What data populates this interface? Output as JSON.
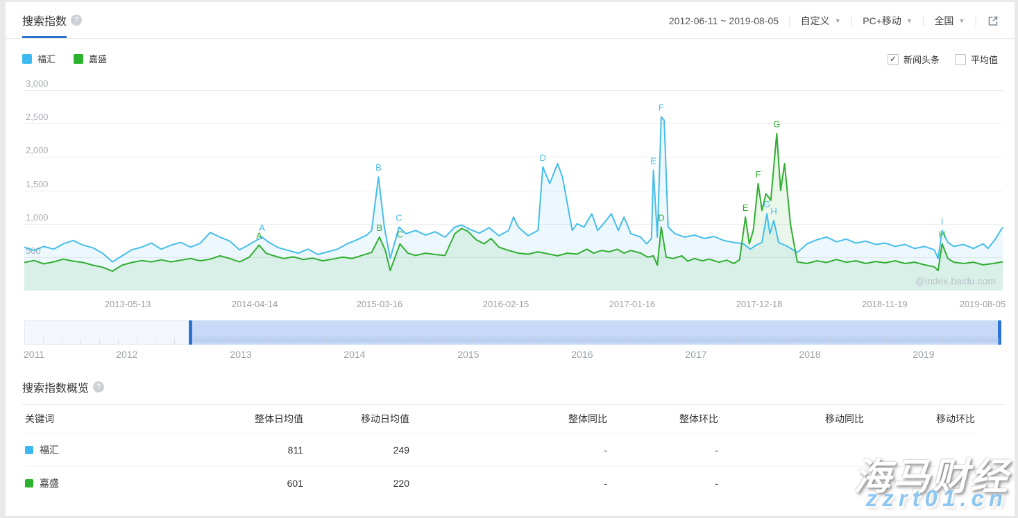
{
  "header": {
    "title": "搜索指数",
    "date_range": "2012-06-11 ~ 2019-08-05",
    "dropdowns": [
      {
        "label": "自定义"
      },
      {
        "label": "PC+移动"
      },
      {
        "label": "全国"
      }
    ]
  },
  "legend": {
    "items": [
      {
        "label": "福汇",
        "color": "#3cbaf0"
      },
      {
        "label": "嘉盛",
        "color": "#2db22d"
      }
    ]
  },
  "controls": {
    "checkboxes": [
      {
        "label": "新闻头条",
        "checked": true
      },
      {
        "label": "平均值",
        "checked": false
      }
    ]
  },
  "chart_data": {
    "type": "area",
    "title": "搜索指数 (Baidu index, daily search volume)",
    "x_start": "2012-06-11",
    "x_end": "2019-08-05",
    "xlabel": "",
    "ylabel": "",
    "ylim": [
      0,
      3000
    ],
    "grid": true,
    "legend_position": "top-left",
    "watermark": "@index.baidu.com",
    "yticks": [
      {
        "v": 500,
        "label": "500"
      },
      {
        "v": 1000,
        "label": "1,000"
      },
      {
        "v": 1500,
        "label": "1,500"
      },
      {
        "v": 2000,
        "label": "2,000"
      },
      {
        "v": 2500,
        "label": "2,500"
      },
      {
        "v": 3000,
        "label": "3,000"
      }
    ],
    "xticks": [
      {
        "t": 0.1057,
        "label": "2013-05-13"
      },
      {
        "t": 0.2355,
        "label": "2014-04-14"
      },
      {
        "t": 0.3631,
        "label": "2015-03-16"
      },
      {
        "t": 0.4922,
        "label": "2016-02-15"
      },
      {
        "t": 0.6213,
        "label": "2017-01-16"
      },
      {
        "t": 0.7511,
        "label": "2017-12-18"
      },
      {
        "t": 0.8794,
        "label": "2018-11-19"
      },
      {
        "t": 0.9794,
        "label": "2019-08-05"
      }
    ],
    "series": [
      {
        "name": "福汇",
        "color": "#45bdea",
        "fill": "rgba(69,189,234,0.10)",
        "points": [
          [
            0,
            650
          ],
          [
            0.01,
            600
          ],
          [
            0.02,
            660
          ],
          [
            0.03,
            620
          ],
          [
            0.04,
            700
          ],
          [
            0.05,
            750
          ],
          [
            0.06,
            680
          ],
          [
            0.07,
            640
          ],
          [
            0.08,
            560
          ],
          [
            0.09,
            430
          ],
          [
            0.1,
            520
          ],
          [
            0.11,
            610
          ],
          [
            0.12,
            650
          ],
          [
            0.13,
            710
          ],
          [
            0.14,
            620
          ],
          [
            0.15,
            680
          ],
          [
            0.16,
            720
          ],
          [
            0.17,
            650
          ],
          [
            0.18,
            710
          ],
          [
            0.19,
            870
          ],
          [
            0.2,
            800
          ],
          [
            0.21,
            740
          ],
          [
            0.22,
            610
          ],
          [
            0.23,
            690
          ],
          [
            0.243,
            800
          ],
          [
            0.25,
            720
          ],
          [
            0.26,
            640
          ],
          [
            0.27,
            600
          ],
          [
            0.28,
            560
          ],
          [
            0.29,
            620
          ],
          [
            0.3,
            540
          ],
          [
            0.31,
            580
          ],
          [
            0.32,
            620
          ],
          [
            0.33,
            700
          ],
          [
            0.34,
            760
          ],
          [
            0.35,
            830
          ],
          [
            0.355,
            900
          ],
          [
            0.362,
            1700
          ],
          [
            0.368,
            950
          ],
          [
            0.374,
            480
          ],
          [
            0.383,
            950
          ],
          [
            0.39,
            850
          ],
          [
            0.4,
            900
          ],
          [
            0.41,
            830
          ],
          [
            0.42,
            880
          ],
          [
            0.43,
            800
          ],
          [
            0.44,
            950
          ],
          [
            0.447,
            980
          ],
          [
            0.455,
            920
          ],
          [
            0.465,
            860
          ],
          [
            0.475,
            940
          ],
          [
            0.485,
            820
          ],
          [
            0.495,
            900
          ],
          [
            0.5,
            1100
          ],
          [
            0.505,
            950
          ],
          [
            0.515,
            820
          ],
          [
            0.525,
            900
          ],
          [
            0.53,
            1850
          ],
          [
            0.537,
            1600
          ],
          [
            0.545,
            1900
          ],
          [
            0.55,
            1700
          ],
          [
            0.555,
            1300
          ],
          [
            0.56,
            900
          ],
          [
            0.565,
            1000
          ],
          [
            0.572,
            950
          ],
          [
            0.58,
            1150
          ],
          [
            0.586,
            900
          ],
          [
            0.592,
            1000
          ],
          [
            0.6,
            1150
          ],
          [
            0.607,
            900
          ],
          [
            0.613,
            1100
          ],
          [
            0.62,
            850
          ],
          [
            0.63,
            800
          ],
          [
            0.636,
            700
          ],
          [
            0.641,
            780
          ],
          [
            0.643,
            1800
          ],
          [
            0.647,
            800
          ],
          [
            0.651,
            2600
          ],
          [
            0.654,
            2550
          ],
          [
            0.658,
            950
          ],
          [
            0.665,
            850
          ],
          [
            0.675,
            800
          ],
          [
            0.685,
            830
          ],
          [
            0.695,
            780
          ],
          [
            0.705,
            810
          ],
          [
            0.715,
            750
          ],
          [
            0.725,
            720
          ],
          [
            0.735,
            700
          ],
          [
            0.742,
            620
          ],
          [
            0.748,
            680
          ],
          [
            0.754,
            720
          ],
          [
            0.759,
            1150
          ],
          [
            0.762,
            850
          ],
          [
            0.766,
            1050
          ],
          [
            0.771,
            720
          ],
          [
            0.78,
            660
          ],
          [
            0.79,
            570
          ],
          [
            0.8,
            700
          ],
          [
            0.81,
            760
          ],
          [
            0.82,
            800
          ],
          [
            0.83,
            730
          ],
          [
            0.84,
            770
          ],
          [
            0.85,
            710
          ],
          [
            0.86,
            740
          ],
          [
            0.87,
            690
          ],
          [
            0.88,
            710
          ],
          [
            0.89,
            660
          ],
          [
            0.9,
            690
          ],
          [
            0.91,
            630
          ],
          [
            0.92,
            660
          ],
          [
            0.93,
            610
          ],
          [
            0.934,
            480
          ],
          [
            0.938,
            900
          ],
          [
            0.944,
            720
          ],
          [
            0.95,
            660
          ],
          [
            0.96,
            690
          ],
          [
            0.97,
            630
          ],
          [
            0.98,
            700
          ],
          [
            0.985,
            630
          ],
          [
            0.992,
            760
          ],
          [
            1,
            950
          ]
        ],
        "annotations": [
          {
            "label": "A",
            "t": 0.243,
            "v": 800
          },
          {
            "label": "B",
            "t": 0.362,
            "v": 1700
          },
          {
            "label": "C",
            "t": 0.383,
            "v": 950
          },
          {
            "label": "D",
            "t": 0.53,
            "v": 1850
          },
          {
            "label": "E",
            "t": 0.643,
            "v": 1800
          },
          {
            "label": "F",
            "t": 0.651,
            "v": 2600
          },
          {
            "label": "G",
            "t": 0.759,
            "v": 1150
          },
          {
            "label": "H",
            "t": 0.766,
            "v": 1050
          },
          {
            "label": "I",
            "t": 0.938,
            "v": 900
          }
        ]
      },
      {
        "name": "嘉盛",
        "color": "#2fae2f",
        "fill": "rgba(47,174,47,0.10)",
        "points": [
          [
            0,
            420
          ],
          [
            0.01,
            450
          ],
          [
            0.02,
            400
          ],
          [
            0.03,
            430
          ],
          [
            0.04,
            470
          ],
          [
            0.05,
            440
          ],
          [
            0.06,
            420
          ],
          [
            0.07,
            380
          ],
          [
            0.08,
            350
          ],
          [
            0.09,
            290
          ],
          [
            0.1,
            380
          ],
          [
            0.11,
            420
          ],
          [
            0.12,
            450
          ],
          [
            0.13,
            430
          ],
          [
            0.14,
            460
          ],
          [
            0.15,
            430
          ],
          [
            0.16,
            455
          ],
          [
            0.17,
            480
          ],
          [
            0.18,
            445
          ],
          [
            0.19,
            470
          ],
          [
            0.2,
            520
          ],
          [
            0.21,
            480
          ],
          [
            0.22,
            430
          ],
          [
            0.23,
            500
          ],
          [
            0.24,
            680
          ],
          [
            0.247,
            560
          ],
          [
            0.255,
            520
          ],
          [
            0.265,
            480
          ],
          [
            0.275,
            505
          ],
          [
            0.285,
            465
          ],
          [
            0.295,
            485
          ],
          [
            0.305,
            445
          ],
          [
            0.315,
            470
          ],
          [
            0.325,
            500
          ],
          [
            0.335,
            480
          ],
          [
            0.345,
            525
          ],
          [
            0.355,
            570
          ],
          [
            0.363,
            800
          ],
          [
            0.369,
            600
          ],
          [
            0.374,
            300
          ],
          [
            0.384,
            700
          ],
          [
            0.392,
            560
          ],
          [
            0.4,
            525
          ],
          [
            0.41,
            560
          ],
          [
            0.42,
            540
          ],
          [
            0.43,
            525
          ],
          [
            0.44,
            850
          ],
          [
            0.447,
            930
          ],
          [
            0.453,
            890
          ],
          [
            0.462,
            760
          ],
          [
            0.47,
            700
          ],
          [
            0.477,
            780
          ],
          [
            0.485,
            650
          ],
          [
            0.495,
            600
          ],
          [
            0.505,
            560
          ],
          [
            0.515,
            545
          ],
          [
            0.525,
            580
          ],
          [
            0.535,
            550
          ],
          [
            0.545,
            520
          ],
          [
            0.555,
            560
          ],
          [
            0.565,
            545
          ],
          [
            0.575,
            620
          ],
          [
            0.582,
            560
          ],
          [
            0.59,
            600
          ],
          [
            0.598,
            580
          ],
          [
            0.606,
            620
          ],
          [
            0.613,
            560
          ],
          [
            0.62,
            600
          ],
          [
            0.63,
            560
          ],
          [
            0.637,
            500
          ],
          [
            0.643,
            520
          ],
          [
            0.647,
            380
          ],
          [
            0.651,
            950
          ],
          [
            0.656,
            500
          ],
          [
            0.663,
            480
          ],
          [
            0.672,
            520
          ],
          [
            0.678,
            440
          ],
          [
            0.685,
            480
          ],
          [
            0.693,
            445
          ],
          [
            0.7,
            470
          ],
          [
            0.71,
            425
          ],
          [
            0.718,
            455
          ],
          [
            0.725,
            405
          ],
          [
            0.731,
            460
          ],
          [
            0.737,
            1100
          ],
          [
            0.741,
            700
          ],
          [
            0.745,
            900
          ],
          [
            0.75,
            1600
          ],
          [
            0.754,
            1200
          ],
          [
            0.758,
            1450
          ],
          [
            0.763,
            1350
          ],
          [
            0.769,
            2350
          ],
          [
            0.773,
            1500
          ],
          [
            0.777,
            1900
          ],
          [
            0.783,
            1000
          ],
          [
            0.79,
            430
          ],
          [
            0.8,
            405
          ],
          [
            0.81,
            445
          ],
          [
            0.82,
            420
          ],
          [
            0.83,
            465
          ],
          [
            0.84,
            425
          ],
          [
            0.85,
            445
          ],
          [
            0.86,
            405
          ],
          [
            0.87,
            435
          ],
          [
            0.88,
            415
          ],
          [
            0.89,
            445
          ],
          [
            0.9,
            405
          ],
          [
            0.91,
            425
          ],
          [
            0.92,
            385
          ],
          [
            0.93,
            355
          ],
          [
            0.934,
            300
          ],
          [
            0.938,
            700
          ],
          [
            0.944,
            480
          ],
          [
            0.95,
            425
          ],
          [
            0.96,
            405
          ],
          [
            0.97,
            425
          ],
          [
            0.98,
            385
          ],
          [
            0.99,
            405
          ],
          [
            1,
            430
          ]
        ],
        "annotations": [
          {
            "label": "A",
            "t": 0.24,
            "v": 680
          },
          {
            "label": "B",
            "t": 0.363,
            "v": 800
          },
          {
            "label": "C",
            "t": 0.384,
            "v": 700
          },
          {
            "label": "D",
            "t": 0.651,
            "v": 950
          },
          {
            "label": "E",
            "t": 0.737,
            "v": 1100
          },
          {
            "label": "F",
            "t": 0.75,
            "v": 1600
          },
          {
            "label": "G",
            "t": 0.769,
            "v": 2350
          },
          {
            "label": "H",
            "t": 0.938,
            "v": 700
          }
        ]
      }
    ]
  },
  "slider": {
    "selection": {
      "start_t": 0.169,
      "end_t": 0.9975
    },
    "years": [
      {
        "t": 0.0,
        "label": "2011"
      },
      {
        "t": 0.105,
        "label": "2012"
      },
      {
        "t": 0.2216,
        "label": "2013"
      },
      {
        "t": 0.338,
        "label": "2014"
      },
      {
        "t": 0.4545,
        "label": "2015"
      },
      {
        "t": 0.571,
        "label": "2016"
      },
      {
        "t": 0.6875,
        "label": "2017"
      },
      {
        "t": 0.804,
        "label": "2018"
      },
      {
        "t": 0.9204,
        "label": "2019"
      }
    ]
  },
  "overview": {
    "title": "搜索指数概览",
    "headers": [
      "关键词",
      "整体日均值",
      "移动日均值",
      "整体同比",
      "整体环比",
      "移动同比",
      "移动环比"
    ],
    "rows": [
      {
        "keyword": "福汇",
        "color": "#3cbaf0",
        "values": [
          "811",
          "249",
          "-",
          "-",
          "",
          ""
        ]
      },
      {
        "keyword": "嘉盛",
        "color": "#2db22d",
        "values": [
          "601",
          "220",
          "-",
          "-",
          "",
          ""
        ]
      }
    ]
  },
  "watermark": {
    "line1": "海马财经",
    "line2": "zzrt01.cn"
  }
}
